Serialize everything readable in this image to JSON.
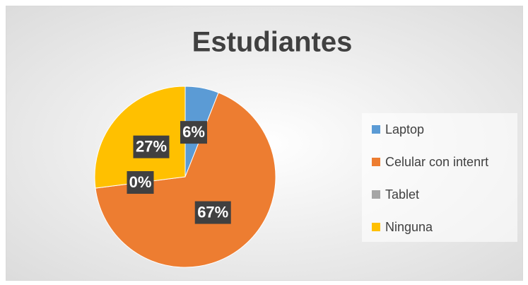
{
  "chart_data": {
    "type": "pie",
    "title": "Estudiantes",
    "categories": [
      "Laptop",
      "Celular con intenrt",
      "Tablet",
      "Ninguna"
    ],
    "values": [
      6,
      67,
      0,
      27
    ],
    "value_labels": [
      "6%",
      "67%",
      "0%",
      "27%"
    ],
    "colors": [
      "#5b9bd5",
      "#ed7d31",
      "#a5a5a5",
      "#ffc000"
    ],
    "legend": "right"
  }
}
